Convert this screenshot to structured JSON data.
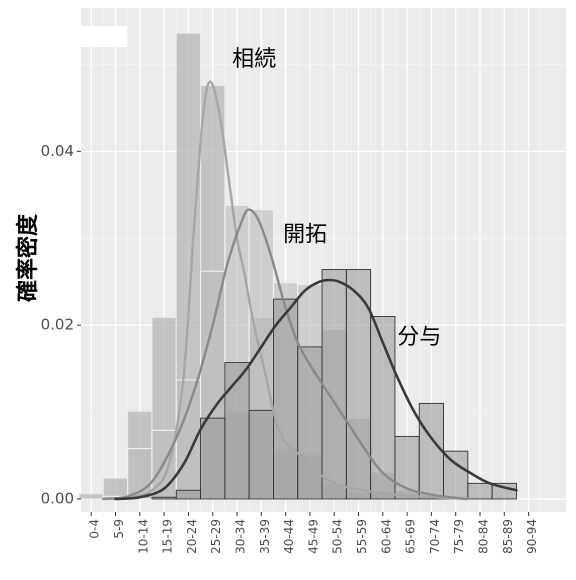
{
  "chart_data": {
    "type": "bar",
    "title": "",
    "xlabel": "",
    "ylabel": "確率密度",
    "ylim": [
      -0.0015,
      0.0565
    ],
    "grid": true,
    "categories": [
      "0-4",
      "5-9",
      "10-14",
      "15-19",
      "20-24",
      "25-29",
      "30-34",
      "35-39",
      "40-44",
      "45-49",
      "50-54",
      "55-59",
      "60-64",
      "65-69",
      "70-74",
      "75-79",
      "80-84",
      "85-89",
      "90-94"
    ],
    "yticks": [
      0.0,
      0.02,
      0.04
    ],
    "ytick_labels": [
      "0.00",
      "0.02",
      "0.04"
    ],
    "series": [
      {
        "name": "相続",
        "bar_color": "#b3b3b3",
        "line_color": "#a6a6a6",
        "values": [
          0.0006,
          0.0024,
          0.0101,
          0.0209,
          0.0536,
          0.0476,
          0.0101,
          0.0209,
          0.0058,
          0.0051,
          0.0018,
          0.0008,
          0.0007,
          0.0,
          0.0,
          0.0,
          0.0,
          0.0,
          0.0
        ],
        "density": [
          [
            1.5,
            0.0
          ],
          [
            2.5,
            0.0002
          ],
          [
            3.5,
            0.001
          ],
          [
            4.2,
            0.004
          ],
          [
            4.8,
            0.014
          ],
          [
            5.2,
            0.03
          ],
          [
            5.6,
            0.044
          ],
          [
            5.9,
            0.048
          ],
          [
            6.3,
            0.044
          ],
          [
            6.7,
            0.036
          ],
          [
            7.0,
            0.03
          ],
          [
            7.3,
            0.026
          ],
          [
            7.7,
            0.02
          ],
          [
            8.2,
            0.014
          ],
          [
            8.6,
            0.009
          ],
          [
            9.0,
            0.0065
          ],
          [
            9.6,
            0.005
          ],
          [
            10.3,
            0.003
          ],
          [
            11.2,
            0.0016
          ],
          [
            12.2,
            0.001
          ],
          [
            13.5,
            0.0005
          ],
          [
            15.0,
            0.0002
          ],
          [
            16.5,
            0.0
          ]
        ],
        "label_position": [
          6.8,
          0.0505
        ]
      },
      {
        "name": "開拓",
        "bar_color": "#bdbdbd",
        "line_color": "#8a8a8a",
        "values": [
          0.0,
          0.0003,
          0.0058,
          0.0079,
          0.0137,
          0.0262,
          0.0338,
          0.0333,
          0.0249,
          0.0247,
          0.0195,
          0.0093,
          0.0031,
          0.001,
          0.0005,
          0.0,
          0.0,
          0.0,
          0.0
        ],
        "density": [
          [
            1.5,
            0.0
          ],
          [
            2.5,
            0.0003
          ],
          [
            3.5,
            0.002
          ],
          [
            4.5,
            0.007
          ],
          [
            5.3,
            0.013
          ],
          [
            6.0,
            0.02
          ],
          [
            6.6,
            0.027
          ],
          [
            7.2,
            0.032
          ],
          [
            7.5,
            0.0333
          ],
          [
            7.9,
            0.032
          ],
          [
            8.4,
            0.028
          ],
          [
            9.0,
            0.022
          ],
          [
            9.5,
            0.018
          ],
          [
            10.1,
            0.015
          ],
          [
            10.8,
            0.012
          ],
          [
            11.5,
            0.009
          ],
          [
            12.2,
            0.006
          ],
          [
            13.0,
            0.003
          ],
          [
            14.0,
            0.0012
          ],
          [
            15.2,
            0.0004
          ],
          [
            16.5,
            0.0
          ]
        ],
        "label_position": [
          8.9,
          0.0303
        ]
      },
      {
        "name": "分与",
        "bar_color": "#9a9a9a",
        "line_color": "#3a3a3a",
        "values": [
          0.0,
          0.0,
          0.0,
          0.0002,
          0.001,
          0.0093,
          0.0157,
          0.0102,
          0.023,
          0.0175,
          0.0264,
          0.0264,
          0.021,
          0.0072,
          0.011,
          0.0055,
          0.0018,
          0.0018,
          0.0
        ],
        "density": [
          [
            2.0,
            0.0
          ],
          [
            3.0,
            0.0002
          ],
          [
            4.0,
            0.0012
          ],
          [
            4.8,
            0.004
          ],
          [
            5.5,
            0.008
          ],
          [
            6.2,
            0.011
          ],
          [
            6.8,
            0.013
          ],
          [
            7.4,
            0.015
          ],
          [
            8.0,
            0.0175
          ],
          [
            8.6,
            0.02
          ],
          [
            9.2,
            0.022
          ],
          [
            9.8,
            0.024
          ],
          [
            10.4,
            0.025
          ],
          [
            10.8,
            0.0252
          ],
          [
            11.2,
            0.025
          ],
          [
            11.8,
            0.024
          ],
          [
            12.4,
            0.022
          ],
          [
            13.0,
            0.018
          ],
          [
            13.6,
            0.014
          ],
          [
            14.3,
            0.01
          ],
          [
            15.0,
            0.007
          ],
          [
            15.8,
            0.0045
          ],
          [
            16.6,
            0.003
          ],
          [
            17.4,
            0.0018
          ],
          [
            18.5,
            0.001
          ]
        ],
        "label_position": [
          13.6,
          0.0185
        ]
      }
    ],
    "overlap_color": "#808080"
  }
}
